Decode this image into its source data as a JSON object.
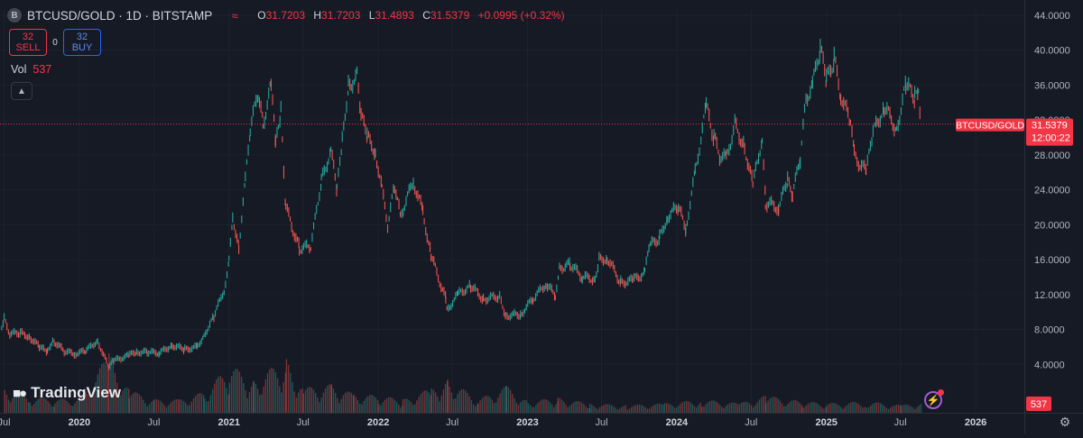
{
  "header": {
    "symbol_icon": "B",
    "symbol_title": "BTCUSD/GOLD · 1D · BITSTAMP",
    "indicator_icon": "≈",
    "ohlc": {
      "o_label": "O",
      "o": "31.7203",
      "h_label": "H",
      "h": "31.7203",
      "l_label": "L",
      "l": "31.4893",
      "c_label": "C",
      "c": "31.5379",
      "change": "+0.0995 (+0.32%)"
    }
  },
  "trade": {
    "sell_price": "32",
    "sell_label": "SELL",
    "spread": "0",
    "buy_price": "32",
    "buy_label": "BUY"
  },
  "volume": {
    "label": "Vol",
    "value": "537"
  },
  "collapse_icon": "chevron-up-icon",
  "brand": "TradingView",
  "price_tag": {
    "symbol": "BTCUSD/GOLD",
    "price": "31.5379",
    "countdown": "12:00:22"
  },
  "volume_tag": "537",
  "colors": {
    "background": "#161a25",
    "up": "#26a69a",
    "down": "#ef5350",
    "tag": "#f23645",
    "grid": "#1e222d",
    "text": "#d1d4dc"
  },
  "chart_data": {
    "type": "line",
    "title": "BTCUSD/GOLD · 1D · BITSTAMP",
    "y_ticks": [
      "44.0000",
      "40.0000",
      "36.0000",
      "32.0000",
      "28.0000",
      "24.0000",
      "20.0000",
      "16.0000",
      "12.0000",
      "8.0000",
      "4.0000"
    ],
    "ylim": [
      0,
      44
    ],
    "x_ticks": [
      "Jul",
      "2020",
      "Jul",
      "2021",
      "Jul",
      "2022",
      "Jul",
      "2023",
      "Jul",
      "2024",
      "Jul",
      "2025",
      "Jul",
      "2026"
    ],
    "last_price": 31.5379,
    "series": [
      {
        "values": [
          [
            "2019-06-25",
            8.0
          ],
          [
            "2019-07-01",
            9.2
          ],
          [
            "2019-07-15",
            7.5
          ],
          [
            "2019-08-10",
            7.6
          ],
          [
            "2019-09-01",
            7.2
          ],
          [
            "2019-09-25",
            6.0
          ],
          [
            "2019-10-15",
            5.4
          ],
          [
            "2019-10-28",
            6.8
          ],
          [
            "2019-11-25",
            5.5
          ],
          [
            "2019-12-20",
            5.2
          ],
          [
            "2020-01-15",
            5.5
          ],
          [
            "2020-02-15",
            6.7
          ],
          [
            "2020-03-12",
            3.7
          ],
          [
            "2020-03-25",
            4.4
          ],
          [
            "2020-04-30",
            5.0
          ],
          [
            "2020-05-20",
            5.4
          ],
          [
            "2020-06-15",
            5.4
          ],
          [
            "2020-07-15",
            5.3
          ],
          [
            "2020-08-15",
            6.2
          ],
          [
            "2020-09-15",
            5.7
          ],
          [
            "2020-10-15",
            6.0
          ],
          [
            "2020-11-01",
            7.3
          ],
          [
            "2020-11-25",
            9.5
          ],
          [
            "2020-12-20",
            12.5
          ],
          [
            "2021-01-01",
            15.8
          ],
          [
            "2021-01-10",
            21.0
          ],
          [
            "2021-01-25",
            17.5
          ],
          [
            "2021-02-10",
            25.0
          ],
          [
            "2021-02-22",
            31.0
          ],
          [
            "2021-03-13",
            35.0
          ],
          [
            "2021-03-25",
            31.5
          ],
          [
            "2021-04-14",
            36.0
          ],
          [
            "2021-04-25",
            29.0
          ],
          [
            "2021-05-08",
            33.0
          ],
          [
            "2021-05-20",
            22.0
          ],
          [
            "2021-06-22",
            17.3
          ],
          [
            "2021-07-20",
            17.5
          ],
          [
            "2021-08-15",
            25.0
          ],
          [
            "2021-09-07",
            28.5
          ],
          [
            "2021-09-22",
            24.0
          ],
          [
            "2021-10-05",
            29.5
          ],
          [
            "2021-10-20",
            36.0
          ],
          [
            "2021-11-10",
            37.0
          ],
          [
            "2021-11-20",
            32.5
          ],
          [
            "2021-12-05",
            30.0
          ],
          [
            "2021-12-25",
            28.5
          ],
          [
            "2022-01-10",
            24.0
          ],
          [
            "2022-01-24",
            20.0
          ],
          [
            "2022-02-10",
            24.5
          ],
          [
            "2022-02-24",
            21.0
          ],
          [
            "2022-03-28",
            25.0
          ],
          [
            "2022-04-20",
            21.5
          ],
          [
            "2022-05-10",
            16.5
          ],
          [
            "2022-06-15",
            11.5
          ],
          [
            "2022-06-18",
            10.2
          ],
          [
            "2022-07-15",
            12.0
          ],
          [
            "2022-08-15",
            13.0
          ],
          [
            "2022-09-15",
            11.5
          ],
          [
            "2022-10-25",
            11.8
          ],
          [
            "2022-11-09",
            9.6
          ],
          [
            "2022-12-15",
            9.7
          ],
          [
            "2023-01-14",
            11.5
          ],
          [
            "2023-02-15",
            13.2
          ],
          [
            "2023-03-10",
            11.9
          ],
          [
            "2023-03-20",
            15.0
          ],
          [
            "2023-04-15",
            15.5
          ],
          [
            "2023-05-15",
            14.0
          ],
          [
            "2023-06-15",
            13.8
          ],
          [
            "2023-06-25",
            16.0
          ],
          [
            "2023-07-15",
            16.2
          ],
          [
            "2023-08-17",
            13.4
          ],
          [
            "2023-09-15",
            13.6
          ],
          [
            "2023-10-15",
            14.5
          ],
          [
            "2023-10-25",
            17.5
          ],
          [
            "2023-11-20",
            18.5
          ],
          [
            "2023-12-10",
            21.0
          ],
          [
            "2024-01-05",
            22.0
          ],
          [
            "2024-01-23",
            19.5
          ],
          [
            "2024-02-15",
            26.0
          ],
          [
            "2024-03-13",
            33.5
          ],
          [
            "2024-04-01",
            30.0
          ],
          [
            "2024-04-15",
            28.0
          ],
          [
            "2024-05-01",
            27.5
          ],
          [
            "2024-05-22",
            31.5
          ],
          [
            "2024-06-15",
            29.0
          ],
          [
            "2024-07-05",
            24.5
          ],
          [
            "2024-07-28",
            30.0
          ],
          [
            "2024-08-05",
            22.5
          ],
          [
            "2024-09-06",
            22.0
          ],
          [
            "2024-09-28",
            25.0
          ],
          [
            "2024-10-10",
            23.5
          ],
          [
            "2024-10-29",
            27.5
          ],
          [
            "2024-11-12",
            34.5
          ],
          [
            "2024-11-28",
            36.0
          ],
          [
            "2024-12-17",
            40.2
          ],
          [
            "2025-01-01",
            36.5
          ],
          [
            "2025-01-20",
            39.0
          ],
          [
            "2025-02-05",
            35.0
          ],
          [
            "2025-03-01",
            31.5
          ],
          [
            "2025-03-10",
            28.0
          ],
          [
            "2025-04-08",
            26.0
          ],
          [
            "2025-04-25",
            30.5
          ],
          [
            "2025-05-22",
            33.5
          ],
          [
            "2025-06-22",
            31.0
          ],
          [
            "2025-07-14",
            36.0
          ],
          [
            "2025-08-05",
            34.5
          ],
          [
            "2025-08-14",
            35.5
          ],
          [
            "2025-08-21",
            31.5379
          ]
        ]
      }
    ],
    "volume": [
      [
        "2019-07-01",
        1400
      ],
      [
        "2019-09-01",
        900
      ],
      [
        "2019-11-01",
        700
      ],
      [
        "2020-01-01",
        800
      ],
      [
        "2020-03-12",
        3100
      ],
      [
        "2020-05-01",
        1200
      ],
      [
        "2020-07-01",
        700
      ],
      [
        "2020-09-01",
        700
      ],
      [
        "2020-11-01",
        1100
      ],
      [
        "2021-01-01",
        2500
      ],
      [
        "2021-03-01",
        1800
      ],
      [
        "2021-05-20",
        2800
      ],
      [
        "2021-07-01",
        1300
      ],
      [
        "2021-09-07",
        1500
      ],
      [
        "2021-11-01",
        1000
      ],
      [
        "2022-01-01",
        900
      ],
      [
        "2022-03-01",
        700
      ],
      [
        "2022-05-10",
        1300
      ],
      [
        "2022-06-18",
        1800
      ],
      [
        "2022-09-01",
        700
      ],
      [
        "2022-11-09",
        1400
      ],
      [
        "2023-01-01",
        600
      ],
      [
        "2023-03-15",
        800
      ],
      [
        "2023-06-01",
        500
      ],
      [
        "2023-09-01",
        400
      ],
      [
        "2023-12-01",
        500
      ],
      [
        "2024-03-01",
        700
      ],
      [
        "2024-06-01",
        500
      ],
      [
        "2024-08-05",
        900
      ],
      [
        "2024-11-01",
        600
      ],
      [
        "2025-01-01",
        500
      ],
      [
        "2025-04-08",
        600
      ],
      [
        "2025-07-01",
        400
      ],
      [
        "2025-08-21",
        537
      ]
    ]
  }
}
